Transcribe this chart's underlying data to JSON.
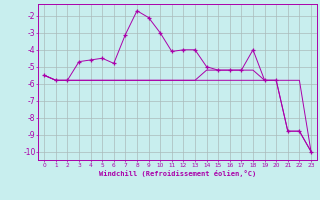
{
  "xlabel": "Windchill (Refroidissement éolien,°C)",
  "bg_color": "#c8eeee",
  "grid_color": "#aabbbb",
  "line_color": "#aa00aa",
  "xlim": [
    -0.5,
    23.5
  ],
  "ylim": [
    -10.5,
    -1.3
  ],
  "yticks": [
    -10,
    -9,
    -8,
    -7,
    -6,
    -5,
    -4,
    -3,
    -2
  ],
  "xticks": [
    0,
    1,
    2,
    3,
    4,
    5,
    6,
    7,
    8,
    9,
    10,
    11,
    12,
    13,
    14,
    15,
    16,
    17,
    18,
    19,
    20,
    21,
    22,
    23
  ],
  "line1_x": [
    0,
    1,
    2,
    3,
    4,
    5,
    6,
    7,
    8,
    9,
    10,
    11,
    12,
    13,
    14,
    15,
    16,
    17,
    18,
    19,
    20,
    21,
    22,
    23
  ],
  "line1_y": [
    -5.5,
    -5.8,
    -5.8,
    -4.7,
    -4.6,
    -4.5,
    -4.8,
    -3.1,
    -1.7,
    -2.1,
    -3.0,
    -4.1,
    -4.0,
    -4.0,
    -5.0,
    -5.2,
    -5.2,
    -5.2,
    -4.0,
    -5.8,
    -5.8,
    -8.8,
    -8.8,
    -10.0
  ],
  "line2_x": [
    0,
    1,
    2,
    3,
    4,
    5,
    6,
    7,
    8,
    9,
    10,
    11,
    12,
    13,
    14,
    15,
    16,
    17,
    18,
    19,
    20,
    21,
    22,
    23
  ],
  "line2_y": [
    -5.5,
    -5.8,
    -5.8,
    -5.8,
    -5.8,
    -5.8,
    -5.8,
    -5.8,
    -5.8,
    -5.8,
    -5.8,
    -5.8,
    -5.8,
    -5.8,
    -5.8,
    -5.8,
    -5.8,
    -5.8,
    -5.8,
    -5.8,
    -5.8,
    -5.8,
    -5.8,
    -10.0
  ],
  "line3_x": [
    0,
    1,
    2,
    3,
    4,
    5,
    6,
    7,
    8,
    9,
    10,
    11,
    12,
    13,
    14,
    15,
    16,
    17,
    18,
    19,
    20,
    21,
    22,
    23
  ],
  "line3_y": [
    -5.5,
    -5.8,
    -5.8,
    -5.8,
    -5.8,
    -5.8,
    -5.8,
    -5.8,
    -5.8,
    -5.8,
    -5.8,
    -5.8,
    -5.8,
    -5.8,
    -5.2,
    -5.2,
    -5.2,
    -5.2,
    -5.2,
    -5.8,
    -5.8,
    -8.8,
    -8.8,
    -10.0
  ]
}
